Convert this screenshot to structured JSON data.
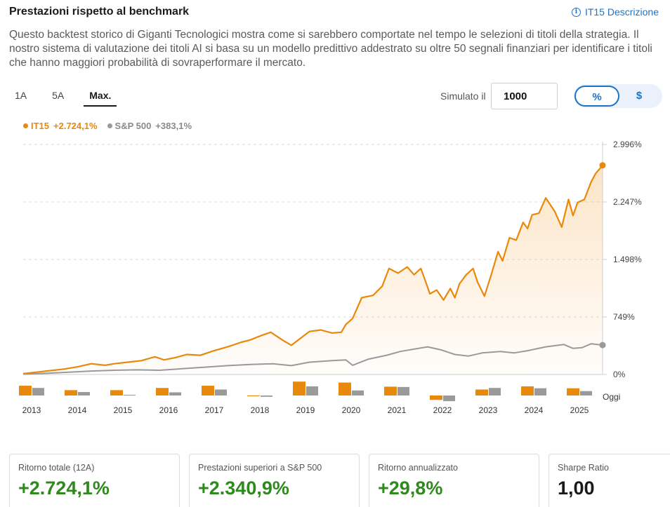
{
  "header": {
    "title": "Prestazioni rispetto al benchmark",
    "description_link": "IT15 Descrizione",
    "info_icon": "info-icon"
  },
  "description": "Questo backtest storico di Giganti Tecnologici mostra come si sarebbero comportate nel tempo le selezioni di titoli della strategia. Il nostro sistema di valutazione dei titoli AI si basa su un modello predittivo addestrato su oltre 50 segnali finanziari per identificare i titoli che hanno maggiori probabilità di sovraperformare il mercato.",
  "tabs": [
    {
      "label": "1A",
      "active": false
    },
    {
      "label": "5A",
      "active": false
    },
    {
      "label": "Max.",
      "active": true
    }
  ],
  "simulator": {
    "label": "Simulato il",
    "value": "1000"
  },
  "unit_toggle": {
    "percent": "%",
    "dollar": "$",
    "selected": "%"
  },
  "legend": {
    "it15_name": "IT15",
    "it15_value": "+2.724,1%",
    "sp_name": "S&P 500",
    "sp_value": "+383,1%"
  },
  "colors": {
    "it15": "#e8890c",
    "sp500": "#9a9a9a",
    "positive": "#2f8a1e",
    "accent": "#1a73c8"
  },
  "chart_data": {
    "type": "line",
    "title": "Prestazioni rispetto al benchmark",
    "ylim": [
      0,
      2996
    ],
    "y_ticks": [
      0,
      749,
      1498,
      2247,
      2996
    ],
    "y_tick_labels": [
      "0%",
      "749%",
      "1.498%",
      "2.247%",
      "2.996%"
    ],
    "x_tick_labels": [
      "2013",
      "2014",
      "2015",
      "2016",
      "2017",
      "2018",
      "2019",
      "2020",
      "2021",
      "2022",
      "2023",
      "2024",
      "2025"
    ],
    "today_label": "Oggi",
    "x_start": 2013.0,
    "x_end": 2025.75,
    "series": [
      {
        "name": "IT15",
        "final": 2724.1,
        "x": [
          2013.0,
          2013.3,
          2013.6,
          2013.9,
          2014.2,
          2014.5,
          2014.8,
          2015.0,
          2015.3,
          2015.6,
          2015.9,
          2016.1,
          2016.35,
          2016.6,
          2016.9,
          2017.2,
          2017.5,
          2017.8,
          2018.0,
          2018.25,
          2018.45,
          2018.7,
          2018.9,
          2019.1,
          2019.3,
          2019.55,
          2019.8,
          2020.0,
          2020.1,
          2020.25,
          2020.45,
          2020.7,
          2020.9,
          2021.05,
          2021.25,
          2021.45,
          2021.6,
          2021.75,
          2021.85,
          2021.95,
          2022.1,
          2022.25,
          2022.4,
          2022.5,
          2022.6,
          2022.75,
          2022.9,
          2023.0,
          2023.15,
          2023.3,
          2023.45,
          2023.55,
          2023.7,
          2023.85,
          2024.0,
          2024.1,
          2024.2,
          2024.35,
          2024.5,
          2024.7,
          2024.85,
          2025.0,
          2025.1,
          2025.2,
          2025.35,
          2025.5,
          2025.6,
          2025.75
        ],
        "values": [
          10,
          30,
          50,
          70,
          100,
          140,
          120,
          140,
          160,
          180,
          230,
          190,
          220,
          260,
          250,
          310,
          360,
          420,
          450,
          510,
          550,
          450,
          380,
          470,
          560,
          580,
          540,
          550,
          650,
          730,
          1000,
          1030,
          1150,
          1380,
          1320,
          1400,
          1300,
          1380,
          1220,
          1050,
          1100,
          970,
          1120,
          1000,
          1180,
          1300,
          1380,
          1200,
          1020,
          1300,
          1600,
          1480,
          1780,
          1750,
          1980,
          1900,
          2080,
          2100,
          2300,
          2120,
          1920,
          2280,
          2070,
          2240,
          2280,
          2510,
          2620,
          2724
        ]
      },
      {
        "name": "S&P 500",
        "final": 383.1,
        "x": [
          2013.0,
          2013.5,
          2014.0,
          2014.5,
          2015.0,
          2015.5,
          2016.0,
          2016.5,
          2017.0,
          2017.5,
          2018.0,
          2018.5,
          2018.9,
          2019.3,
          2019.8,
          2020.1,
          2020.25,
          2020.6,
          2021.0,
          2021.3,
          2021.6,
          2021.9,
          2022.2,
          2022.5,
          2022.8,
          2023.1,
          2023.5,
          2023.8,
          2024.1,
          2024.5,
          2024.9,
          2025.1,
          2025.3,
          2025.5,
          2025.75
        ],
        "values": [
          5,
          15,
          30,
          45,
          55,
          60,
          55,
          75,
          95,
          115,
          130,
          140,
          115,
          160,
          180,
          190,
          120,
          200,
          250,
          300,
          330,
          360,
          320,
          260,
          240,
          280,
          300,
          280,
          310,
          360,
          390,
          340,
          350,
          400,
          383
        ]
      }
    ],
    "annual_returns": {
      "years": [
        "2013",
        "2014",
        "2015",
        "2016",
        "2017",
        "2018",
        "2019",
        "2020",
        "2021",
        "2022",
        "2023",
        "2024",
        "2025"
      ],
      "it15": [
        31,
        17,
        17,
        24,
        31,
        -2,
        44,
        41,
        28,
        -14,
        19,
        29,
        23
      ],
      "sp500": [
        24,
        11,
        1,
        10,
        19,
        -4,
        29,
        16,
        27,
        -18,
        24,
        23,
        14
      ]
    }
  },
  "cards": [
    {
      "label": "Ritorno totale (12A)",
      "value": "+2.724,1%",
      "tone": "positive"
    },
    {
      "label": "Prestazioni superiori a S&P 500",
      "value": "+2.340,9%",
      "tone": "positive"
    },
    {
      "label": "Ritorno annualizzato",
      "value": "+29,8%",
      "tone": "positive"
    },
    {
      "label": "Sharpe Ratio",
      "value": "1,00",
      "tone": "neutral"
    }
  ]
}
